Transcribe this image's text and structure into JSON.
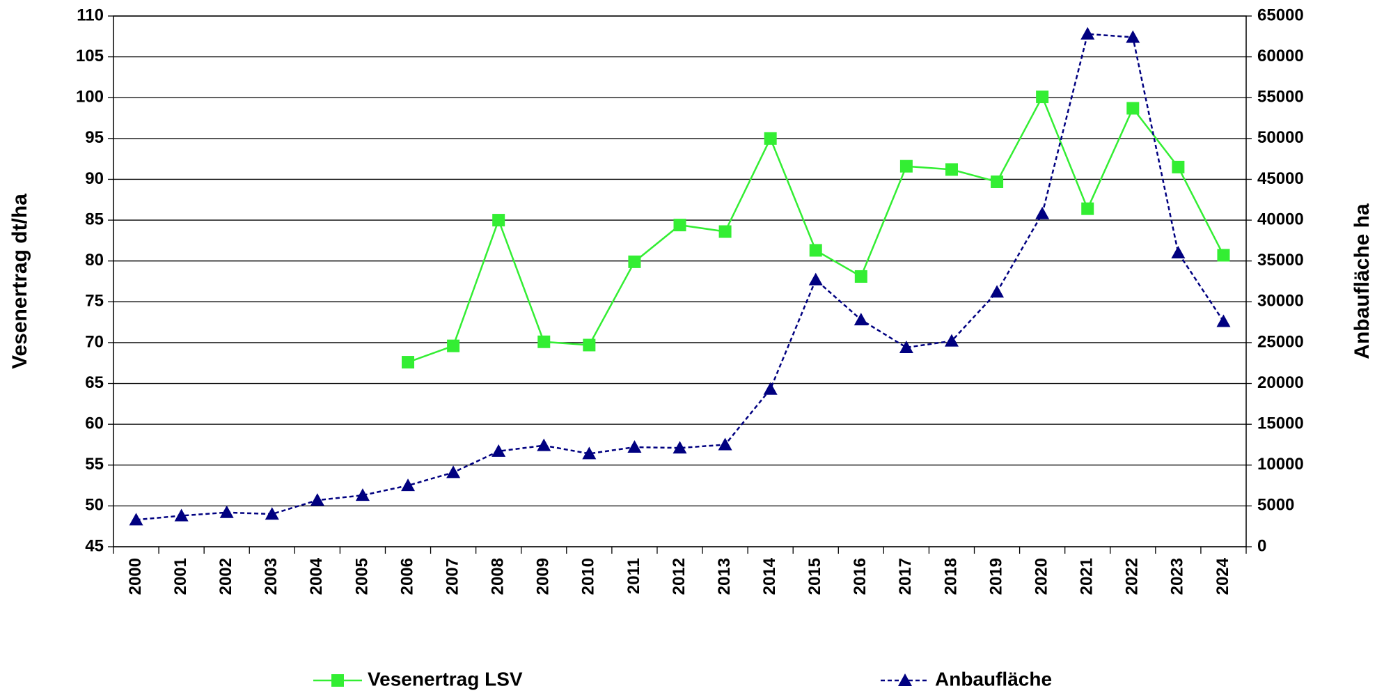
{
  "chart_data": {
    "type": "line",
    "ylabel": "Vesenertrag  dt/ha",
    "y2label": "Anbaufläche ha",
    "categories": [
      "2000",
      "2001",
      "2002",
      "2003",
      "2004",
      "2005",
      "2006",
      "2007",
      "2008",
      "2009",
      "2010",
      "2011",
      "2012",
      "2013",
      "2014",
      "2015",
      "2016",
      "2017",
      "2018",
      "2019",
      "2020",
      "2021",
      "2022",
      "2023",
      "2024"
    ],
    "series": [
      {
        "name": "Vesenertrag LSV",
        "color": "#33ee33",
        "marker": "square",
        "dash": false,
        "values": [
          null,
          null,
          null,
          null,
          null,
          null,
          67.6,
          69.6,
          85,
          70.1,
          69.7,
          79.9,
          84.4,
          83.6,
          95,
          81.3,
          78.1,
          91.6,
          91.2,
          89.7,
          100.1,
          86.4,
          98.7,
          91.5,
          80.7
        ]
      },
      {
        "name": "Anbaufläche",
        "color": "#000080",
        "marker": "triangle",
        "dash": true,
        "axis": "y2",
        "values": [
          3300,
          3800,
          4200,
          4000,
          5700,
          6300,
          7500,
          9100,
          11700,
          12400,
          11400,
          12200,
          12100,
          12500,
          19300,
          32700,
          27800,
          24400,
          25200,
          31200,
          40800,
          62800,
          62400,
          36000,
          27600
        ]
      }
    ],
    "ylim": [
      45,
      110
    ],
    "yticks": [
      45,
      50,
      55,
      60,
      65,
      70,
      75,
      80,
      85,
      90,
      95,
      100,
      105,
      110
    ],
    "y2lim": [
      0,
      65000
    ],
    "y2ticks": [
      0,
      5000,
      10000,
      15000,
      20000,
      25000,
      30000,
      35000,
      40000,
      45000,
      50000,
      55000,
      60000,
      65000
    ],
    "grid": true,
    "legend": "bottom"
  }
}
